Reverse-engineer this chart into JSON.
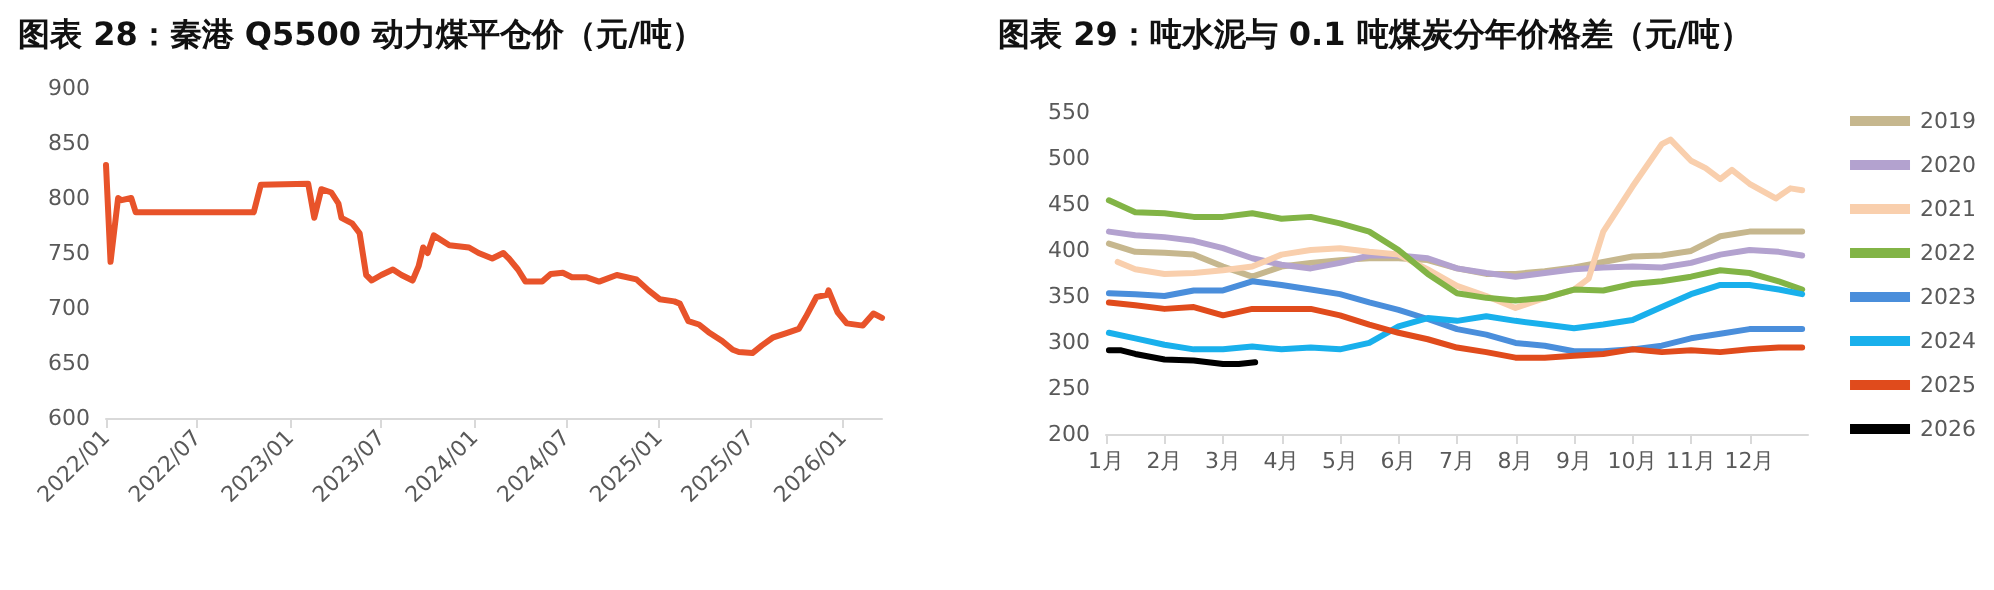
{
  "chart_data": [
    {
      "type": "line",
      "title": "图表 28：秦港 Q5500 动力煤平仓价（元/吨）",
      "legend": false,
      "grid": false,
      "marker": "none",
      "line_style": "solid",
      "xlim": [
        "2022-01-01",
        "2026-03-20"
      ],
      "xticks": [
        {
          "value": "2022-01",
          "label": "2022/01"
        },
        {
          "value": "2022-07",
          "label": "2022/07"
        },
        {
          "value": "2023-01",
          "label": "2023/01"
        },
        {
          "value": "2023-07",
          "label": "2023/07"
        },
        {
          "value": "2024-01",
          "label": "2024/01"
        },
        {
          "value": "2024-07",
          "label": "2024/07"
        },
        {
          "value": "2025-01",
          "label": "2025/01"
        },
        {
          "value": "2025-07",
          "label": "2025/07"
        },
        {
          "value": "2026-01",
          "label": "2026/01"
        }
      ],
      "ylim": [
        600,
        900
      ],
      "yticks": [
        600,
        650,
        700,
        750,
        800,
        850,
        900
      ],
      "x": [
        "2022-01-01",
        "2022-01-10",
        "2022-01-25",
        "2022-02-01",
        "2022-02-20",
        "2022-03-01",
        "2022-10-21",
        "2022-11-04",
        "2023-02-06",
        "2023-02-18",
        "2023-03-04",
        "2023-03-24",
        "2023-04-07",
        "2023-04-13",
        "2023-05-04",
        "2023-05-19",
        "2023-06-01",
        "2023-06-12",
        "2023-07-01",
        "2023-07-24",
        "2023-08-10",
        "2023-09-01",
        "2023-09-13",
        "2023-09-22",
        "2023-10-01",
        "2023-10-13",
        "2023-11-13",
        "2023-12-22",
        "2024-01-10",
        "2024-02-06",
        "2024-02-28",
        "2024-03-10",
        "2024-03-28",
        "2024-04-12",
        "2024-05-15",
        "2024-06-01",
        "2024-06-25",
        "2024-07-13",
        "2024-08-10",
        "2024-09-05",
        "2024-10-10",
        "2024-11-18",
        "2024-12-12",
        "2025-01-03",
        "2025-02-01",
        "2025-02-12",
        "2025-03-01",
        "2025-03-22",
        "2025-04-10",
        "2025-05-07",
        "2025-05-28",
        "2025-06-09",
        "2025-07-06",
        "2025-07-25",
        "2025-08-15",
        "2025-09-10",
        "2025-10-06",
        "2025-10-20",
        "2025-11-10",
        "2025-12-01",
        "2025-12-04",
        "2025-12-22",
        "2026-01-09",
        "2026-02-10",
        "2026-03-03",
        "2026-03-20"
      ],
      "series": [
        {
          "color": "#e8532a",
          "values": [
            830,
            742,
            800,
            798,
            800,
            787,
            787,
            812,
            813,
            782,
            808,
            805,
            795,
            782,
            777,
            768,
            730,
            725,
            730,
            735,
            730,
            725,
            738,
            755,
            750,
            766,
            757,
            755,
            750,
            745,
            750,
            745,
            735,
            724,
            724,
            731,
            732,
            728,
            728,
            724,
            730,
            726,
            716,
            708,
            706,
            704,
            688,
            685,
            678,
            670,
            662,
            660,
            659,
            666,
            673,
            677,
            681,
            692,
            710,
            712,
            716,
            696,
            686,
            684,
            695,
            691
          ]
        }
      ]
    },
    {
      "type": "line",
      "title": "图表 29：吨水泥与 0.1 吨煤炭分年价格差（元/吨）",
      "legend": "right",
      "grid": false,
      "marker": "none",
      "line_style": "solid",
      "xlim": [
        1,
        13
      ],
      "xticks": [
        {
          "value": 1,
          "label": "1月"
        },
        {
          "value": 2,
          "label": "2月"
        },
        {
          "value": 3,
          "label": "3月"
        },
        {
          "value": 4,
          "label": "4月"
        },
        {
          "value": 5,
          "label": "5月"
        },
        {
          "value": 6,
          "label": "6月"
        },
        {
          "value": 7,
          "label": "7月"
        },
        {
          "value": 8,
          "label": "8月"
        },
        {
          "value": 9,
          "label": "9月"
        },
        {
          "value": 10,
          "label": "10月"
        },
        {
          "value": 11,
          "label": "11月"
        },
        {
          "value": 12,
          "label": "12月"
        }
      ],
      "ylim": [
        200,
        550
      ],
      "yticks": [
        200,
        250,
        300,
        350,
        400,
        450,
        500,
        550
      ],
      "x": [
        1.05,
        1.5,
        2,
        2.5,
        3,
        3.5,
        4,
        4.5,
        5,
        5.5,
        6,
        6.5,
        7,
        7.5,
        8,
        8.5,
        9,
        9.5,
        10,
        10.5,
        11,
        11.5,
        12,
        12.5,
        12.9
      ],
      "series": [
        {
          "name": "2019",
          "color": "#c6b78e",
          "values": [
            407,
            398,
            397,
            395,
            382,
            371,
            382,
            386,
            389,
            391,
            391,
            389,
            380,
            374,
            374,
            377,
            381,
            387,
            393,
            394,
            399,
            415,
            420,
            420,
            420
          ]
        },
        {
          "name": "2020",
          "color": "#b3a2cf",
          "values": [
            420,
            416,
            414,
            410,
            402,
            391,
            384,
            380,
            386,
            394,
            394,
            391,
            380,
            375,
            371,
            375,
            379,
            381,
            382,
            381,
            386,
            395,
            400,
            398,
            394
          ]
        },
        {
          "name": "2021",
          "color": "#f9cfad",
          "x": [
            1.2,
            1.5,
            2,
            2.5,
            3,
            3.5,
            4,
            4.5,
            5,
            5.5,
            6,
            6.5,
            7,
            7.5,
            8,
            8.5,
            9,
            9.25,
            9.5,
            10,
            10.5,
            10.65,
            11,
            11.25,
            11.5,
            11.7,
            12,
            12.45,
            12.7,
            12.9
          ],
          "values": [
            387,
            379,
            374,
            375,
            378,
            382,
            395,
            400,
            402,
            398,
            395,
            379,
            361,
            350,
            337,
            348,
            357,
            369,
            420,
            469,
            515,
            520,
            497,
            489,
            477,
            487,
            472,
            456,
            467,
            465
          ]
        },
        {
          "name": "2022",
          "color": "#82b446",
          "values": [
            454,
            441,
            440,
            436,
            436,
            440,
            434,
            436,
            429,
            420,
            400,
            374,
            353,
            348,
            345,
            348,
            357,
            356,
            363,
            366,
            371,
            378,
            375,
            366,
            357
          ]
        },
        {
          "name": "2023",
          "color": "#4a8edb",
          "values": [
            353,
            352,
            350,
            356,
            356,
            366,
            362,
            357,
            352,
            343,
            335,
            325,
            314,
            308,
            299,
            296,
            290,
            290,
            292,
            296,
            304,
            309,
            314,
            314,
            314
          ]
        },
        {
          "name": "2024",
          "color": "#19b0ec",
          "values": [
            310,
            304,
            297,
            292,
            292,
            295,
            292,
            294,
            292,
            299,
            317,
            326,
            323,
            328,
            323,
            319,
            315,
            319,
            324,
            338,
            352,
            362,
            362,
            357,
            352
          ]
        },
        {
          "name": "2025",
          "color": "#e04b1c",
          "values": [
            343,
            340,
            336,
            338,
            329,
            336,
            336,
            336,
            329,
            319,
            310,
            303,
            294,
            289,
            283,
            283,
            285,
            287,
            292,
            289,
            291,
            289,
            292,
            294,
            294
          ]
        },
        {
          "name": "2026",
          "color": "#000000",
          "x": [
            1.05,
            1.26,
            1.5,
            2,
            2.5,
            3,
            3.27,
            3.55
          ],
          "values": [
            291,
            291,
            287,
            281,
            280,
            276,
            276,
            278
          ]
        }
      ]
    }
  ]
}
